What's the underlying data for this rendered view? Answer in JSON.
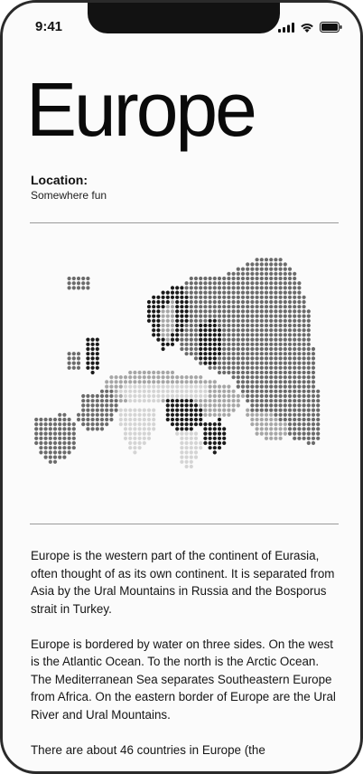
{
  "status_bar": {
    "time": "9:41",
    "icons": [
      "signal-icon",
      "wifi-icon",
      "battery-icon"
    ]
  },
  "page": {
    "title": "Europe",
    "location_label": "Location:",
    "location_value": "Somewhere fun"
  },
  "map": {
    "icon": "europe-dot-map",
    "colors": [
      "#1a1a1a",
      "#6b6b6b",
      "#a6a6a6",
      "#d4d4d4"
    ]
  },
  "body": {
    "paragraphs": [
      "Europe is the western part of the continent of Eurasia, often thought of as its own continent. It is separated from Asia by the Ural Mountains in Russia and the Bosporus strait in Turkey.",
      "Europe is bordered by water on three sides. On the west is the Atlantic Ocean. To the north is the Arctic Ocean. The Mediterranean Sea separates Southeastern Europe from Africa. On the eastern border of Europe are the Ural River and Ural Mountains.",
      "There are about 46 countries in Europe (the"
    ]
  }
}
